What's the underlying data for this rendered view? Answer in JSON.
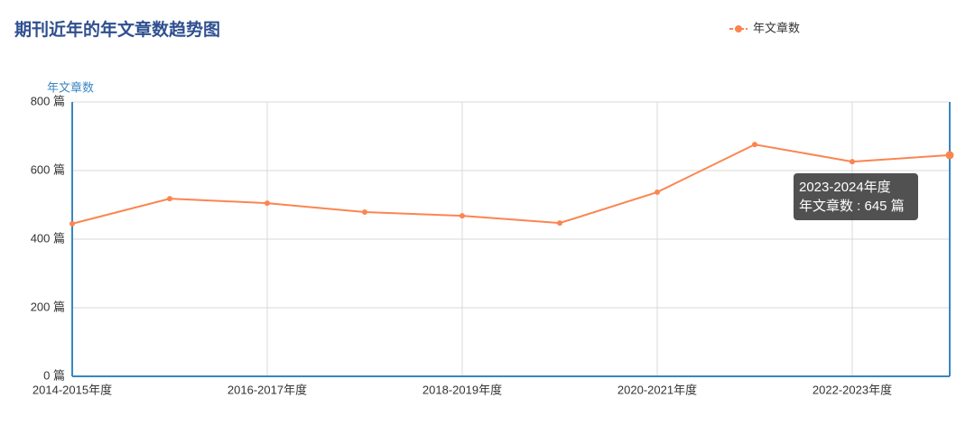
{
  "chart_data": {
    "type": "line",
    "title": "期刊近年的年文章数趋势图",
    "y_axis_label": "年文章数",
    "categories": [
      "2014-2015年度",
      null,
      "2016-2017年度",
      null,
      "2018-2019年度",
      null,
      "2020-2021年度",
      null,
      "2022-2023年度",
      null
    ],
    "series": [
      {
        "name": "年文章数",
        "color": "#fb8550",
        "values": [
          445,
          518,
          505,
          479,
          468,
          447,
          537,
          676,
          626,
          645
        ]
      }
    ],
    "ylim": [
      0,
      800
    ],
    "yticks": [
      {
        "value": 0,
        "label": "0 篇"
      },
      {
        "value": 200,
        "label": "200 篇"
      },
      {
        "value": 400,
        "label": "400 篇"
      },
      {
        "value": 600,
        "label": "600 篇"
      },
      {
        "value": 800,
        "label": "800 篇"
      }
    ],
    "grid": true,
    "legend": "top-right",
    "tooltip": {
      "category": "2023-2024年度",
      "label": "年文章数 : 645 篇"
    }
  }
}
